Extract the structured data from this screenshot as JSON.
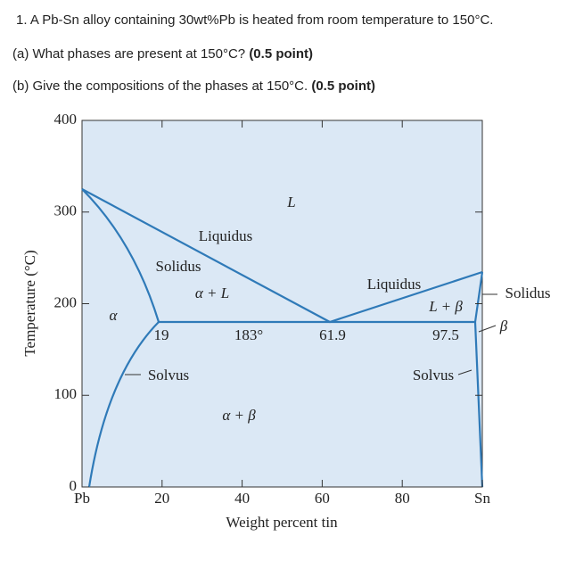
{
  "question": {
    "line1": "1. A Pb-Sn alloy containing 30wt%Pb is heated from room temperature to 150°C.",
    "part_a": {
      "text": "(a) What phases are present at 150°C?",
      "points": "(0.5 point)"
    },
    "part_b": {
      "text": "(b) Give the compositions of the phases at 150°C.",
      "points": "(0.5 point)"
    }
  },
  "figure": {
    "y_label": "Temperature (°C)",
    "x_label": "Weight percent tin",
    "y_ticks": [
      400,
      300,
      200,
      100,
      0
    ],
    "x_ticks": [
      "Pb",
      20,
      40,
      60,
      80,
      "Sn"
    ],
    "labels": {
      "L": "L",
      "liquidus_left": "Liquidus",
      "solidus_left": "Solidus",
      "alpha_L": "α + L",
      "alpha": "α",
      "eutectic_left": "19",
      "eutectic_temp": "183°",
      "eutectic_comp": "61.9",
      "liquidus_right": "Liquidus",
      "L_beta": "L + β",
      "eutectic_right": "97.5",
      "solidus_right": "Solidus",
      "beta": "β",
      "solvus_left": "Solvus",
      "solvus_right": "Solvus",
      "alpha_beta": "α + β"
    }
  }
}
